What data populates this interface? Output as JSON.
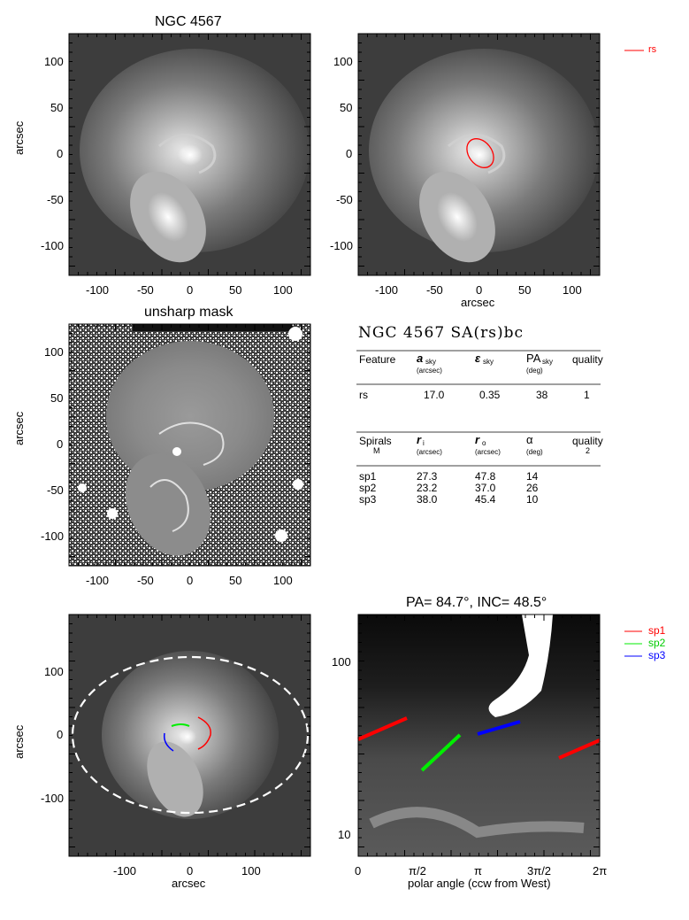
{
  "panel1": {
    "title": "NGC 4567",
    "ylabel": "arcsec",
    "xticks": [
      "-100",
      "-50",
      "0",
      "50",
      "100"
    ],
    "yticks": [
      "100",
      "50",
      "0",
      "-50",
      "-100"
    ]
  },
  "panel2": {
    "xlabel": "arcsec",
    "xticks": [
      "-100",
      "-50",
      "0",
      "50",
      "100"
    ],
    "yticks": [
      "100",
      "50",
      "0",
      "-50",
      "-100"
    ],
    "legend": [
      {
        "label": "rs",
        "color": "#ff0000"
      }
    ]
  },
  "panel3": {
    "title": "unsharp mask",
    "ylabel": "arcsec",
    "xticks": [
      "-100",
      "-50",
      "0",
      "50",
      "100"
    ],
    "yticks": [
      "100",
      "50",
      "0",
      "-50",
      "-100"
    ]
  },
  "table": {
    "title": "NGC 4567  SA(rs)bc",
    "features_header": {
      "feature": "Feature",
      "a_main": "a",
      "a_sub": "sky",
      "a_unit": "(arcsec)",
      "e_main": "ε",
      "e_sub": "sky",
      "pa_main": "PA",
      "pa_sub": "sky",
      "pa_unit": "(deg)",
      "quality": "quality"
    },
    "features": [
      {
        "name": "rs",
        "a": "17.0",
        "e": "0.35",
        "pa": "38",
        "quality": "1"
      }
    ],
    "spirals_header": {
      "spirals": "Spirals",
      "m": "M",
      "ri_main": "r",
      "ri_sub": "i",
      "ri_unit": "(arcsec)",
      "ro_main": "r",
      "ro_sub": "o",
      "ro_unit": "(arcsec)",
      "alpha": "α",
      "alpha_unit": "(deg)",
      "quality": "quality",
      "quality_val": "2"
    },
    "spirals": [
      {
        "name": "sp1",
        "ri": "27.3",
        "ro": "47.8",
        "alpha": "14"
      },
      {
        "name": "sp2",
        "ri": "23.2",
        "ro": "37.0",
        "alpha": "26"
      },
      {
        "name": "sp3",
        "ri": "38.0",
        "ro": "45.4",
        "alpha": "10"
      }
    ]
  },
  "panel5": {
    "ylabel": "arcsec",
    "xlabel": "arcsec",
    "xticks": [
      "-100",
      "0",
      "100"
    ],
    "yticks": [
      "100",
      "0",
      "-100"
    ]
  },
  "panel6": {
    "title": "PA=  84.7°, INC=  48.5°",
    "xlabel": "polar angle (ccw from West)",
    "xticks": [
      "0",
      "π/2",
      "π",
      "3π/2",
      "2π"
    ],
    "yticks": [
      "100",
      "10"
    ],
    "legend": [
      {
        "label": "sp1",
        "color": "#ff0000"
      },
      {
        "label": "sp2",
        "color": "#00ee00"
      },
      {
        "label": "sp3",
        "color": "#0000ff"
      }
    ]
  }
}
